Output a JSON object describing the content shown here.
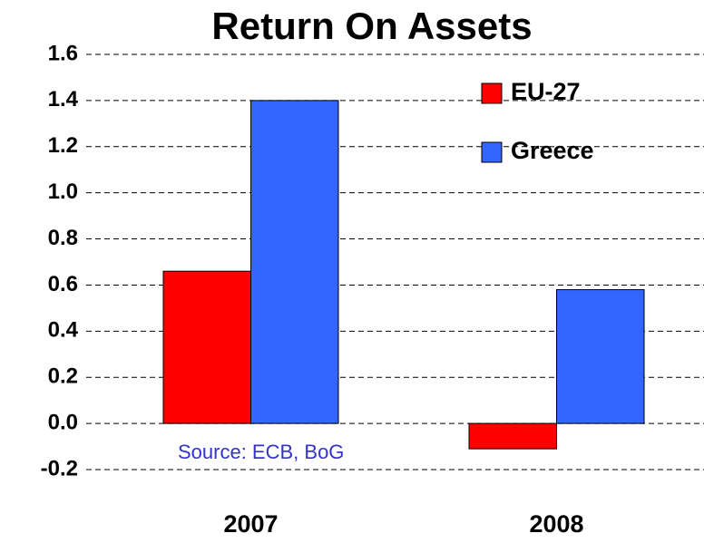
{
  "chart_data": {
    "type": "bar",
    "title": "Return On Assets",
    "categories": [
      "2007",
      "2008"
    ],
    "series": [
      {
        "name": "EU-27",
        "color": "#ff0000",
        "values": [
          0.66,
          -0.11
        ]
      },
      {
        "name": "Greece",
        "color": "#3366ff",
        "values": [
          1.4,
          0.58
        ]
      }
    ],
    "ylim": [
      -0.2,
      1.6
    ],
    "yticks": [
      -0.2,
      {
        "value": 0,
        "label": "0.0"
      },
      0.2,
      0.4,
      0.6,
      0.8,
      {
        "value": 1,
        "label": "1.0"
      },
      1.2,
      1.4,
      1.6
    ],
    "grid": true,
    "legend": "upper right",
    "annotation": "Source: ECB, BoG"
  }
}
